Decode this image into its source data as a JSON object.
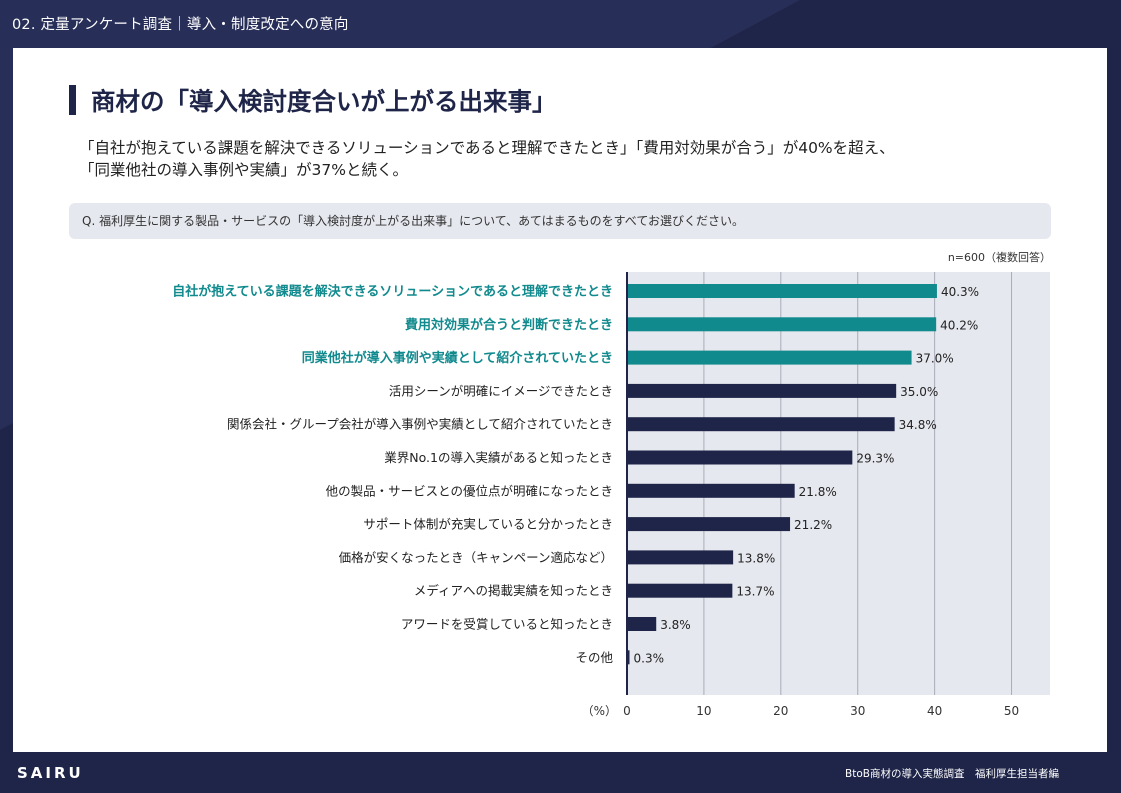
{
  "header": {
    "section_label": "02. 定量アンケート調査｜導入・制度改定への意向"
  },
  "slide": {
    "title": "商材の「導入検討度合いが上がる出来事」",
    "lead_line1": "「自社が抱えている課題を解決できるソリューションであると理解できたとき」「費用対効果が合う」が40%を超え、",
    "lead_line2": "「同業他社の導入事例や実績」が37%と続く。",
    "question": "Q. 福利厚生に関する製品・サービスの「導入検討度が上がる出来事」について、あてはまるものをすべてお選びください。",
    "sample_note": "n=600（複数回答）"
  },
  "footer": {
    "logo": "SAIRU",
    "note": "BtoB商材の導入実態調査　福利厚生担当者編"
  },
  "colors": {
    "background_navy": "#1f2548",
    "highlight_teal": "#118a8e",
    "bar_navy": "#1f2548",
    "plot_bg": "#e6e8ef"
  },
  "chart_data": {
    "type": "bar",
    "orientation": "horizontal",
    "xlabel": "（%）",
    "xlim": [
      0,
      55
    ],
    "xticks": [
      0,
      10,
      20,
      30,
      40,
      50
    ],
    "grid": true,
    "categories": [
      "自社が抱えている課題を解決できるソリューションであると理解できたとき",
      "費用対効果が合うと判断できたとき",
      "同業他社が導入事例や実績として紹介されていたとき",
      "活用シーンが明確にイメージできたとき",
      "関係会社・グループ会社が導入事例や実績として紹介されていたとき",
      "業界No.1の導入実績があると知ったとき",
      "他の製品・サービスとの優位点が明確になったとき",
      "サポート体制が充実していると分かったとき",
      "価格が安くなったとき（キャンペーン適応など）",
      "メディアへの掲載実績を知ったとき",
      "アワードを受賞していると知ったとき",
      "その他"
    ],
    "values": [
      40.3,
      40.2,
      37.0,
      35.0,
      34.8,
      29.3,
      21.8,
      21.2,
      13.8,
      13.7,
      3.8,
      0.3
    ],
    "value_labels": [
      "40.3%",
      "40.2%",
      "37.0%",
      "35.0%",
      "34.8%",
      "29.3%",
      "21.8%",
      "21.2%",
      "13.8%",
      "13.7%",
      "3.8%",
      "0.3%"
    ],
    "highlighted": [
      true,
      true,
      true,
      false,
      false,
      false,
      false,
      false,
      false,
      false,
      false,
      false
    ]
  }
}
